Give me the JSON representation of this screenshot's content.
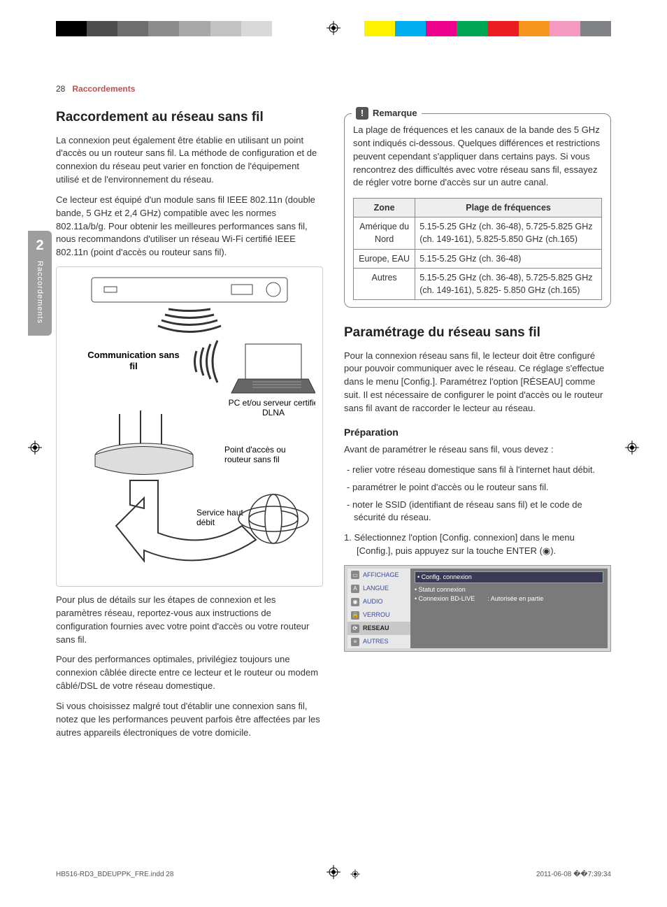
{
  "color_bar": [
    "#000000",
    "#4d4d4d",
    "#6e6e6e",
    "#8c8c8c",
    "#a8a8a8",
    "#c2c2c2",
    "#d9d9d9",
    "#ffffff",
    "#ffffff",
    "#ffffff",
    "#fff200",
    "#00aeef",
    "#ec008c",
    "#00a651",
    "#ed1c24",
    "#f7941d",
    "#f49ac1",
    "#808285"
  ],
  "header": {
    "page_number": "28",
    "breadcrumb": "Raccordements"
  },
  "side_tab": {
    "number": "2",
    "label": "Raccordements"
  },
  "left": {
    "h2": "Raccordement au réseau sans fil",
    "p1": "La connexion peut également être établie en utilisant un point d'accès ou un routeur sans fil. La méthode de configuration et de connexion du réseau peut varier en fonction de l'équipement utilisé et de l'environnement du réseau.",
    "p2": "Ce lecteur est équipé d'un module sans fil IEEE 802.11n (double bande, 5 GHz et 2,4 GHz) compatible avec les normes 802.11a/b/g. Pour obtenir les meilleures performances sans fil, nous recommandons d'utiliser un réseau Wi-Fi certifié IEEE 802.11n (point d'accès ou routeur sans fil).",
    "diagram": {
      "comm_label": "Communication sans fil",
      "pc_label": "PC et/ou serveur certifié DLNA",
      "ap_label": "Point d'accès ou routeur sans fil",
      "service_label": "Service haut débit"
    },
    "p3": "Pour plus de détails sur les étapes de connexion et les paramètres réseau, reportez-vous aux instructions de configuration fournies avec votre point d'accès ou votre routeur sans fil.",
    "p4": "Pour des performances optimales, privilégiez toujours une connexion câblée directe entre ce lecteur et le routeur ou modem câblé/DSL de votre réseau domestique.",
    "p5": "Si vous choisissez malgré tout d'établir une connexion sans fil, notez que les performances peuvent parfois être affectées par les autres appareils électroniques de votre domicile."
  },
  "right": {
    "note_title": "Remarque",
    "note_body": "La plage de fréquences et les canaux de la bande des 5 GHz sont indiqués ci-dessous. Quelques différences et restrictions peuvent cependant s'appliquer dans certains pays. Si vous rencontrez des difficultés avec votre réseau sans fil, essayez de régler votre borne d'accès sur un autre canal.",
    "table": {
      "headers": [
        "Zone",
        "Plage de fréquences"
      ],
      "rows": [
        [
          "Amérique du Nord",
          "5.15-5.25 GHz (ch. 36-48), 5.725-5.825 GHz (ch. 149-161), 5.825-5.850 GHz (ch.165)"
        ],
        [
          "Europe, EAU",
          "5.15-5.25 GHz (ch. 36-48)"
        ],
        [
          "Autres",
          "5.15-5.25 GHz (ch. 36-48), 5.725-5.825 GHz (ch. 149-161), 5.825- 5.850 GHz (ch.165)"
        ]
      ]
    },
    "h2": "Paramétrage du réseau sans fil",
    "p1": "Pour la connexion réseau sans fil, le lecteur doit être configuré pour pouvoir communiquer avec le réseau. Ce réglage s'effectue dans le menu [Config.]. Paramétrez l'option [RÉSEAU] comme suit. Il est nécessaire de configurer le point d'accès ou le routeur sans fil avant de raccorder le lecteur au réseau.",
    "h3": "Préparation",
    "p2": "Avant de paramétrer le réseau sans fil, vous devez :",
    "bullets": [
      "relier votre réseau domestique sans fil à l'internet haut débit.",
      "paramétrer le point d'accès ou le routeur sans fil.",
      "noter le SSID (identifiant de réseau sans fil) et le code de sécurité du réseau."
    ],
    "step1": "1.   Sélectionnez l'option [Config. connexion] dans le menu [Config.], puis appuyez sur la touche ENTER (◉).",
    "settings": {
      "menu": [
        {
          "icon": "▭",
          "label": "AFFICHAGE"
        },
        {
          "icon": "A",
          "label": "LANGUE"
        },
        {
          "icon": "◉",
          "label": "AUDIO"
        },
        {
          "icon": "🔒",
          "label": "VERROU"
        },
        {
          "icon": "⟳",
          "label": "RESEAU",
          "active": true
        },
        {
          "icon": "≡",
          "label": "AUTRES"
        }
      ],
      "panel_hl": "• Config. connexion",
      "panel_rows": [
        [
          "Statut connexion",
          ""
        ],
        [
          "Connexion BD-LIVE",
          ": Autorisée en partie"
        ]
      ]
    }
  },
  "footer": {
    "file": "HB516-RD3_BDEUPPK_FRE.indd   28",
    "timestamp": "2011-06-08   ��7:39:34"
  }
}
